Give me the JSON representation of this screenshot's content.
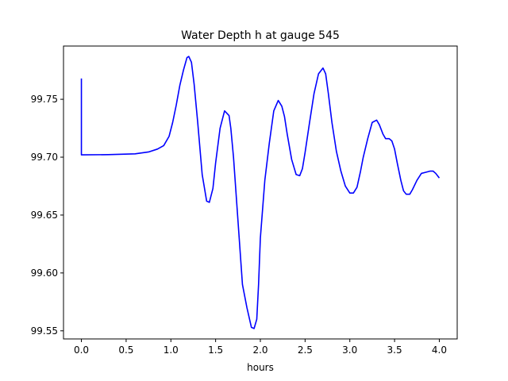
{
  "chart_data": {
    "type": "line",
    "title": "Water Depth h at gauge 545",
    "xlabel": "hours",
    "ylabel": "",
    "xlim": [
      -0.2,
      4.2
    ],
    "ylim": [
      99.543,
      99.796
    ],
    "xticks": [
      0.0,
      0.5,
      1.0,
      1.5,
      2.0,
      2.5,
      3.0,
      3.5,
      4.0
    ],
    "xtick_labels": [
      "0.0",
      "0.5",
      "1.0",
      "1.5",
      "2.0",
      "2.5",
      "3.0",
      "3.5",
      "4.0"
    ],
    "yticks": [
      99.55,
      99.6,
      99.65,
      99.7,
      99.75
    ],
    "ytick_labels": [
      "99.55",
      "99.60",
      "99.65",
      "99.70",
      "99.75"
    ],
    "grid": false,
    "line_color": "#0000ff",
    "series": [
      {
        "x": [
          0.0,
          0.0,
          0.0,
          0.02,
          0.3,
          0.6,
          0.75,
          0.85,
          0.92,
          0.98,
          1.02,
          1.06,
          1.1,
          1.14,
          1.18,
          1.2,
          1.23,
          1.26,
          1.3,
          1.35,
          1.4,
          1.43,
          1.47,
          1.5,
          1.55,
          1.6,
          1.65,
          1.67,
          1.7,
          1.75,
          1.8,
          1.85,
          1.9,
          1.93,
          1.96,
          1.98,
          2.0,
          2.05,
          2.1,
          2.15,
          2.2,
          2.24,
          2.27,
          2.3,
          2.35,
          2.4,
          2.44,
          2.47,
          2.5,
          2.55,
          2.6,
          2.65,
          2.7,
          2.73,
          2.76,
          2.8,
          2.85,
          2.9,
          2.95,
          3.0,
          3.04,
          3.08,
          3.12,
          3.15,
          3.2,
          3.25,
          3.3,
          3.33,
          3.37,
          3.4,
          3.44,
          3.47,
          3.5,
          3.53,
          3.57,
          3.6,
          3.63,
          3.67,
          3.7,
          3.75,
          3.8,
          3.85,
          3.9,
          3.93,
          3.96,
          4.0
        ],
        "y": [
          99.768,
          99.735,
          99.702,
          99.702,
          99.7022,
          99.7029,
          99.7045,
          99.707,
          99.71,
          99.718,
          99.73,
          99.745,
          99.762,
          99.775,
          99.786,
          99.787,
          99.782,
          99.763,
          99.73,
          99.685,
          99.662,
          99.661,
          99.673,
          99.695,
          99.725,
          99.74,
          99.736,
          99.725,
          99.7,
          99.645,
          99.59,
          99.57,
          99.553,
          99.552,
          99.56,
          99.59,
          99.63,
          99.68,
          99.712,
          99.74,
          99.749,
          99.744,
          99.735,
          99.72,
          99.698,
          99.685,
          99.684,
          99.69,
          99.704,
          99.73,
          99.755,
          99.772,
          99.777,
          99.772,
          99.755,
          99.73,
          99.705,
          99.688,
          99.675,
          99.669,
          99.669,
          99.674,
          99.688,
          99.7,
          99.716,
          99.73,
          99.732,
          99.728,
          99.72,
          99.716,
          99.716,
          99.714,
          99.707,
          99.695,
          99.68,
          99.671,
          99.668,
          99.668,
          99.672,
          99.68,
          99.686,
          99.687,
          99.688,
          99.688,
          99.686,
          99.682
        ]
      }
    ]
  }
}
